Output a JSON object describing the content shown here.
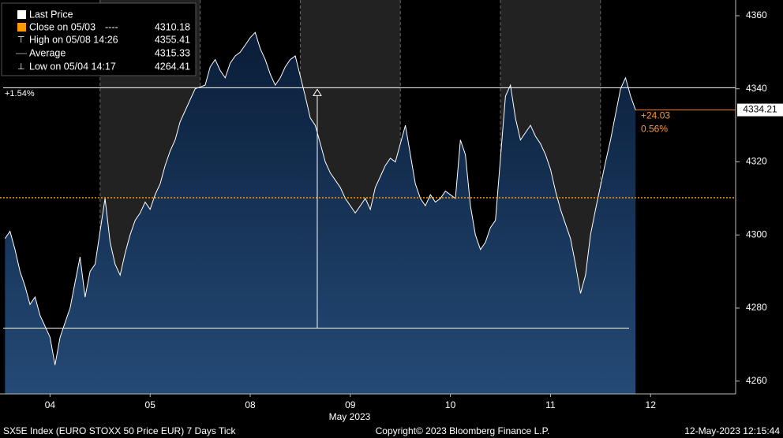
{
  "chart_data": {
    "type": "area",
    "series": [
      {
        "name": "Last Price",
        "color": "#ffffff",
        "x": [
          0.05,
          0.1,
          0.15,
          0.2,
          0.25,
          0.3,
          0.35,
          0.4,
          0.45,
          0.5,
          0.55,
          0.6,
          0.65,
          0.7,
          0.75,
          0.8,
          0.85,
          0.9,
          0.95,
          1.05,
          1.1,
          1.15,
          1.2,
          1.25,
          1.3,
          1.35,
          1.4,
          1.45,
          1.5,
          1.55,
          1.6,
          1.65,
          1.7,
          1.75,
          1.8,
          1.85,
          1.9,
          1.95,
          2.05,
          2.1,
          2.15,
          2.2,
          2.25,
          2.3,
          2.35,
          2.4,
          2.45,
          2.5,
          2.55,
          2.6,
          2.65,
          2.7,
          2.75,
          2.8,
          2.85,
          2.9,
          2.95,
          3.05,
          3.1,
          3.15,
          3.2,
          3.25,
          3.3,
          3.35,
          3.4,
          3.45,
          3.5,
          3.55,
          3.6,
          3.65,
          3.7,
          3.75,
          3.8,
          3.85,
          3.9,
          3.95,
          4.05,
          4.1,
          4.15,
          4.2,
          4.25,
          4.3,
          4.35,
          4.4,
          4.45,
          4.5,
          4.55,
          4.6,
          4.65,
          4.7,
          4.75,
          4.8,
          4.85,
          4.9,
          4.95,
          5.05,
          5.1,
          5.15,
          5.2,
          5.25,
          5.3,
          5.35,
          5.4,
          5.45,
          5.5,
          5.55,
          5.6,
          5.65,
          5.7,
          5.75,
          5.8,
          5.85,
          5.9,
          5.95,
          6.05,
          6.1,
          6.15,
          6.2,
          6.25,
          6.3,
          6.35
        ],
        "values": [
          4299,
          4301,
          4296,
          4290,
          4286,
          4281,
          4283,
          4278,
          4275,
          4272,
          4264.41,
          4272,
          4276,
          4280,
          4287,
          4294,
          4283,
          4290,
          4292,
          4310,
          4298,
          4292,
          4289,
          4295,
          4300,
          4304,
          4306,
          4309,
          4307,
          4311,
          4314,
          4319,
          4323,
          4326,
          4331,
          4334,
          4337,
          4340,
          4341,
          4346,
          4348,
          4345,
          4343,
          4347,
          4349,
          4350,
          4352,
          4354,
          4355.41,
          4351,
          4348,
          4344,
          4341,
          4343,
          4346,
          4348,
          4349,
          4338,
          4332,
          4330,
          4325,
          4320,
          4317,
          4315,
          4313,
          4310,
          4308,
          4306,
          4308,
          4310,
          4307,
          4313,
          4316,
          4319,
          4321,
          4320,
          4330,
          4322,
          4314,
          4310,
          4308,
          4311,
          4309,
          4310,
          4312,
          4311,
          4310,
          4326,
          4322,
          4308,
          4300,
          4296,
          4298,
          4302,
          4304,
          4338,
          4341,
          4332,
          4326,
          4328,
          4330,
          4327,
          4325,
          4322,
          4318,
          4312,
          4307,
          4303,
          4299,
          4292,
          4284,
          4289,
          4300,
          4307,
          4320,
          4326,
          4333,
          4340,
          4343,
          4338,
          4334.21
        ]
      }
    ],
    "close_line": {
      "name": "Close on 05/03",
      "key": "----",
      "value": 4310.18,
      "color": "#ff9900"
    },
    "stats": [
      {
        "name": "High on 05/08 14:26",
        "value": 4355.41
      },
      {
        "name": "Average",
        "value": 4315.33
      },
      {
        "name": "Low on 05/04 14:17",
        "value": 4264.41
      }
    ],
    "change": {
      "value": 24.03,
      "label": "+24.03"
    },
    "change_pct": {
      "value": 0.56,
      "label": "0.56%"
    },
    "measure": {
      "label": "+1.54%",
      "x": 3.17,
      "from": 4274.5,
      "to": 4340.3
    },
    "xlim": [
      0,
      7.35
    ],
    "xticks": [
      {
        "value": 0.5,
        "label": "04"
      },
      {
        "value": 1.5,
        "label": "05"
      },
      {
        "value": 2.5,
        "label": "08"
      },
      {
        "value": 3.5,
        "label": "09"
      },
      {
        "value": 4.5,
        "label": "10"
      },
      {
        "value": 5.5,
        "label": "11"
      },
      {
        "value": 6.5,
        "label": "12"
      }
    ],
    "x_axis_label": "May 2023",
    "ylim": [
      4256.5,
      4364.3
    ],
    "yticks": [
      4260,
      4280,
      4300,
      4320,
      4340,
      4360
    ],
    "footer": {
      "left": "SX5E Index (EURO STOXX 50 Price EUR) 7 Days  Tick",
      "center": "Copyright© 2023 Bloomberg Finance L.P.",
      "right": "12-May-2023 12:15:44"
    }
  }
}
